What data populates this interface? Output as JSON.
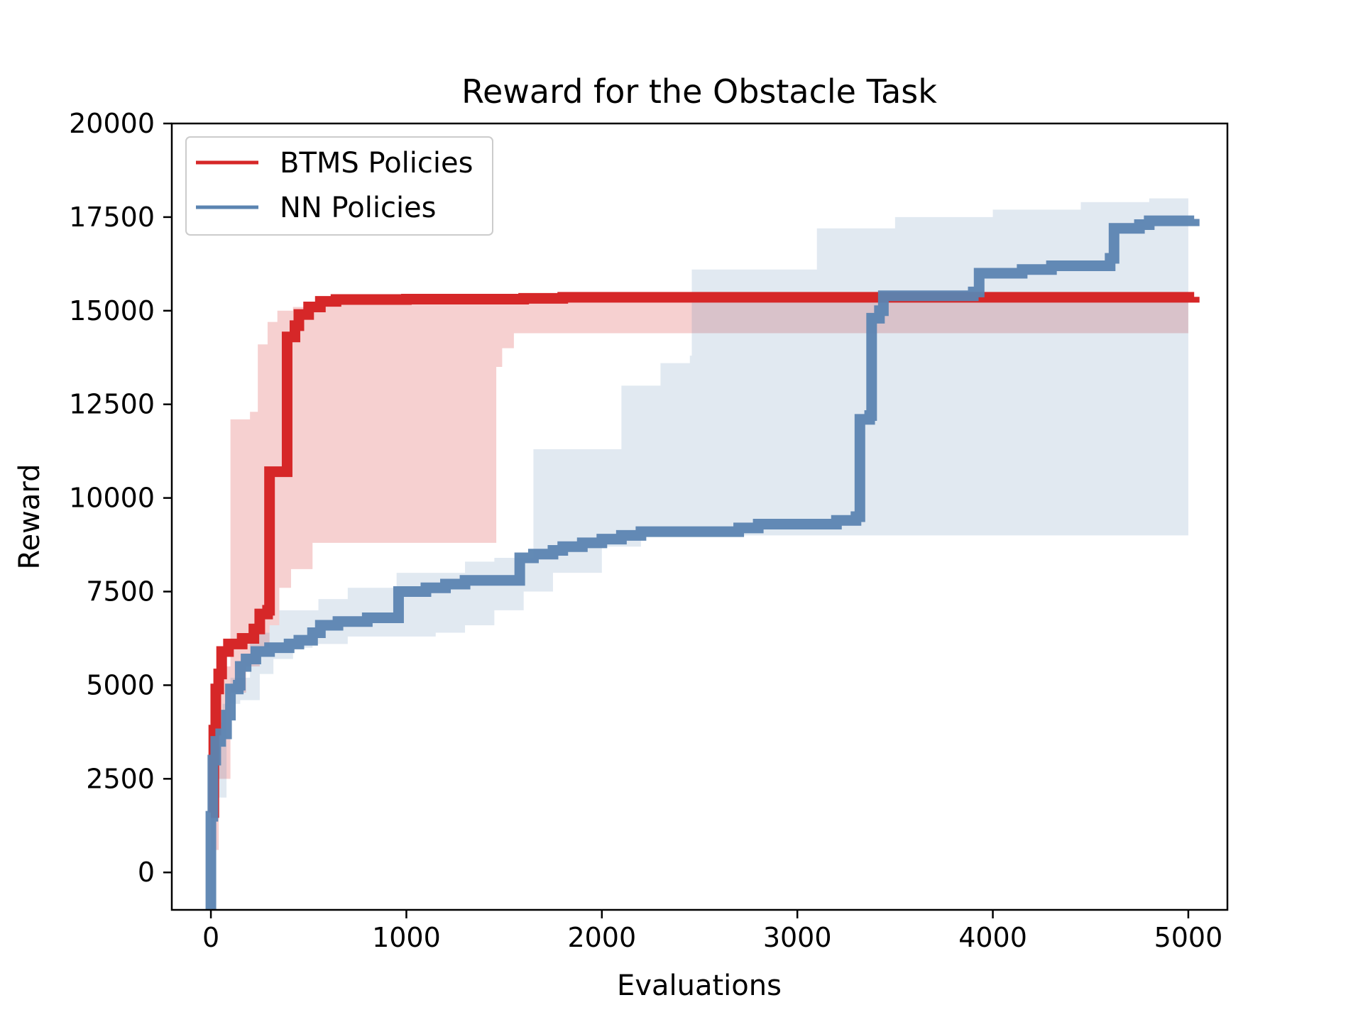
{
  "chart_data": {
    "type": "line",
    "title": "Reward for the Obstacle Task",
    "xlabel": "Evaluations",
    "ylabel": "Reward",
    "xlim": [
      -200,
      5200
    ],
    "ylim": [
      -1000,
      20000
    ],
    "xticks": [
      0,
      1000,
      2000,
      3000,
      4000,
      5000
    ],
    "yticks": [
      0,
      2500,
      5000,
      7500,
      10000,
      12500,
      15000,
      17500,
      20000
    ],
    "xtick_labels": [
      "0",
      "1000",
      "2000",
      "3000",
      "4000",
      "5000"
    ],
    "ytick_labels": [
      "0",
      "2500",
      "5000",
      "7500",
      "10000",
      "12500",
      "15000",
      "17500",
      "20000"
    ],
    "grid": false,
    "legend_position": "top-left",
    "series": [
      {
        "name": "BTMS Policies",
        "color": "#d62728",
        "points": [
          [
            0,
            1600
          ],
          [
            15,
            3800
          ],
          [
            25,
            4900
          ],
          [
            40,
            5300
          ],
          [
            55,
            5900
          ],
          [
            90,
            6100
          ],
          [
            160,
            6250
          ],
          [
            220,
            6500
          ],
          [
            250,
            6900
          ],
          [
            290,
            7000
          ],
          [
            300,
            10700
          ],
          [
            380,
            10700
          ],
          [
            390,
            14300
          ],
          [
            430,
            14600
          ],
          [
            450,
            14900
          ],
          [
            500,
            15100
          ],
          [
            560,
            15250
          ],
          [
            640,
            15300
          ],
          [
            1000,
            15310
          ],
          [
            1600,
            15330
          ],
          [
            1800,
            15360
          ],
          [
            5030,
            15370
          ]
        ],
        "band_upper": [
          [
            0,
            4000
          ],
          [
            30,
            5000
          ],
          [
            60,
            5500
          ],
          [
            100,
            12100
          ],
          [
            200,
            12300
          ],
          [
            240,
            14100
          ],
          [
            290,
            14700
          ],
          [
            340,
            15000
          ],
          [
            420,
            15100
          ],
          [
            500,
            15200
          ],
          [
            600,
            15250
          ],
          [
            1000,
            15300
          ],
          [
            5000,
            15300
          ]
        ],
        "band_lower": [
          [
            0,
            600
          ],
          [
            40,
            2500
          ],
          [
            100,
            4800
          ],
          [
            180,
            5500
          ],
          [
            250,
            6000
          ],
          [
            300,
            6600
          ],
          [
            350,
            7600
          ],
          [
            410,
            8100
          ],
          [
            520,
            8800
          ],
          [
            1450,
            8800
          ],
          [
            1460,
            13500
          ],
          [
            1490,
            14000
          ],
          [
            1550,
            14400
          ],
          [
            5000,
            14400
          ]
        ]
      },
      {
        "name": "NN Policies",
        "color": "#5b84b1",
        "points": [
          [
            -5,
            -1000
          ],
          [
            0,
            1500
          ],
          [
            10,
            3000
          ],
          [
            25,
            3500
          ],
          [
            50,
            3700
          ],
          [
            80,
            4200
          ],
          [
            100,
            4900
          ],
          [
            140,
            5000
          ],
          [
            150,
            5500
          ],
          [
            180,
            5700
          ],
          [
            230,
            5900
          ],
          [
            300,
            6000
          ],
          [
            400,
            6100
          ],
          [
            450,
            6200
          ],
          [
            520,
            6400
          ],
          [
            560,
            6600
          ],
          [
            650,
            6700
          ],
          [
            750,
            6700
          ],
          [
            800,
            6800
          ],
          [
            950,
            6800
          ],
          [
            960,
            7500
          ],
          [
            1100,
            7600
          ],
          [
            1200,
            7700
          ],
          [
            1300,
            7800
          ],
          [
            1550,
            7800
          ],
          [
            1580,
            8400
          ],
          [
            1650,
            8500
          ],
          [
            1750,
            8600
          ],
          [
            1800,
            8700
          ],
          [
            1900,
            8800
          ],
          [
            2000,
            8900
          ],
          [
            2100,
            9000
          ],
          [
            2200,
            9100
          ],
          [
            2600,
            9100
          ],
          [
            2700,
            9200
          ],
          [
            2800,
            9300
          ],
          [
            3000,
            9300
          ],
          [
            3200,
            9400
          ],
          [
            3300,
            9500
          ],
          [
            3320,
            12100
          ],
          [
            3370,
            12200
          ],
          [
            3380,
            14800
          ],
          [
            3420,
            15000
          ],
          [
            3440,
            15400
          ],
          [
            3900,
            15500
          ],
          [
            3930,
            16000
          ],
          [
            4150,
            16100
          ],
          [
            4300,
            16200
          ],
          [
            4550,
            16200
          ],
          [
            4600,
            16400
          ],
          [
            4620,
            17200
          ],
          [
            4750,
            17300
          ],
          [
            4800,
            17400
          ],
          [
            5030,
            17450
          ]
        ],
        "band_upper": [
          [
            0,
            2500
          ],
          [
            30,
            4000
          ],
          [
            60,
            4500
          ],
          [
            100,
            5200
          ],
          [
            200,
            6400
          ],
          [
            300,
            6600
          ],
          [
            350,
            7000
          ],
          [
            550,
            7300
          ],
          [
            700,
            7600
          ],
          [
            950,
            8000
          ],
          [
            1300,
            8300
          ],
          [
            1450,
            8400
          ],
          [
            1650,
            11300
          ],
          [
            1970,
            11300
          ],
          [
            2100,
            13000
          ],
          [
            2300,
            13600
          ],
          [
            2450,
            13800
          ],
          [
            2460,
            16100
          ],
          [
            3080,
            16100
          ],
          [
            3100,
            17200
          ],
          [
            3500,
            17500
          ],
          [
            4000,
            17700
          ],
          [
            4450,
            17900
          ],
          [
            4800,
            18000
          ],
          [
            5000,
            18000
          ]
        ],
        "band_lower": [
          [
            0,
            -1000
          ],
          [
            20,
            2000
          ],
          [
            80,
            4500
          ],
          [
            150,
            4600
          ],
          [
            250,
            5300
          ],
          [
            320,
            5700
          ],
          [
            420,
            6000
          ],
          [
            520,
            6100
          ],
          [
            700,
            6300
          ],
          [
            950,
            6300
          ],
          [
            1150,
            6400
          ],
          [
            1300,
            6600
          ],
          [
            1450,
            7000
          ],
          [
            1600,
            7500
          ],
          [
            1750,
            8000
          ],
          [
            2000,
            8700
          ],
          [
            2200,
            9000
          ],
          [
            2600,
            9000
          ],
          [
            3000,
            9000
          ],
          [
            5000,
            9000
          ]
        ]
      }
    ]
  }
}
